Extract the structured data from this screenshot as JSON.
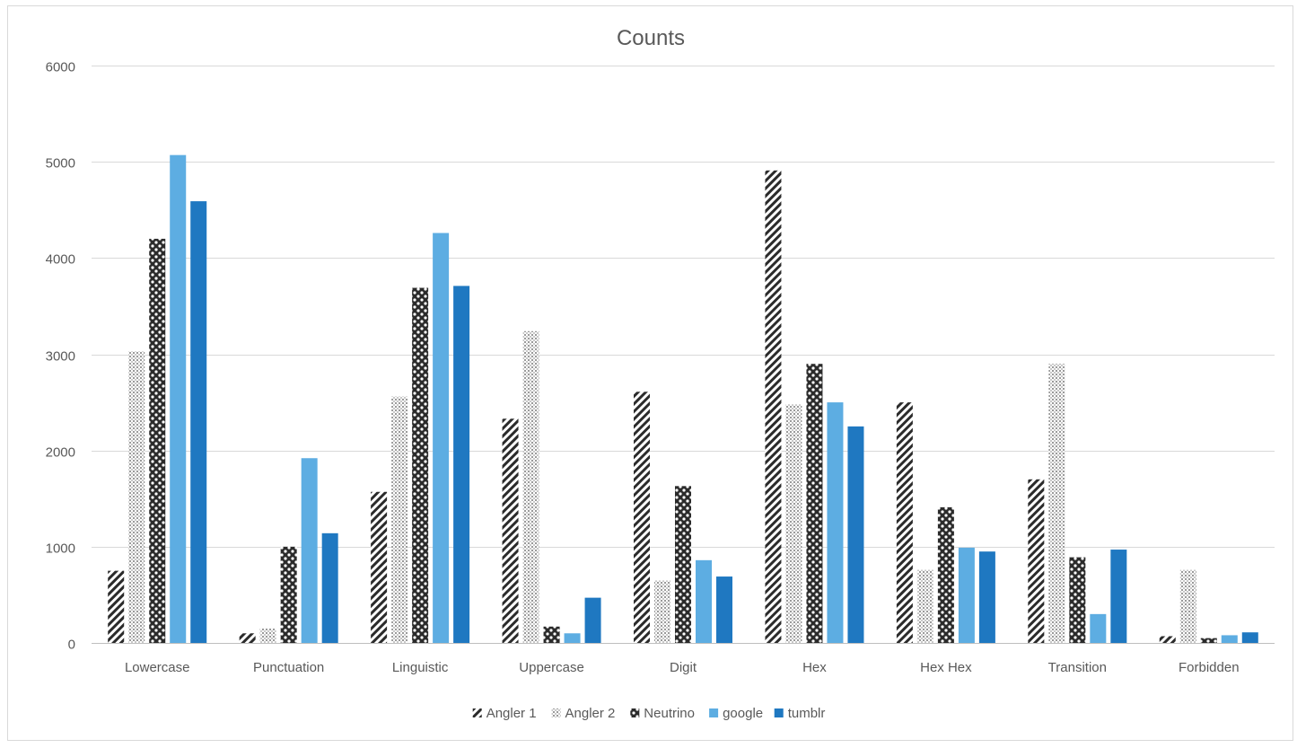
{
  "chart_data": {
    "type": "bar",
    "title": "Counts",
    "xlabel": "",
    "ylabel": "",
    "ylim": [
      0,
      6000
    ],
    "yticks": [
      0,
      1000,
      2000,
      3000,
      4000,
      5000,
      6000
    ],
    "grid": true,
    "legend_position": "bottom",
    "categories": [
      "Lowercase",
      "Punctuation",
      "Linguistic",
      "Uppercase",
      "Digit",
      "Hex",
      "Hex Hex",
      "Transition",
      "Forbidden"
    ],
    "series": [
      {
        "name": "Angler 1",
        "pattern": "diagonal-stripes",
        "color": "#2b2b2b",
        "values": [
          750,
          100,
          1570,
          2330,
          2610,
          4910,
          2500,
          1700,
          70
        ]
      },
      {
        "name": "Angler 2",
        "pattern": "dotted-grid",
        "color": "#a6a6a6",
        "values": [
          3030,
          150,
          2560,
          3240,
          650,
          2480,
          760,
          2900,
          760
        ]
      },
      {
        "name": "Neutrino",
        "pattern": "checker",
        "color": "#2b2b2b",
        "values": [
          4200,
          1000,
          3690,
          170,
          1630,
          2900,
          1410,
          890,
          50
        ]
      },
      {
        "name": "google",
        "pattern": "solid",
        "color": "#5dade2",
        "values": [
          5070,
          1920,
          4260,
          100,
          860,
          2500,
          990,
          300,
          80
        ]
      },
      {
        "name": "tumblr",
        "pattern": "solid",
        "color": "#1f78c1",
        "values": [
          4590,
          1140,
          3710,
          470,
          690,
          2250,
          950,
          970,
          110
        ]
      }
    ]
  }
}
